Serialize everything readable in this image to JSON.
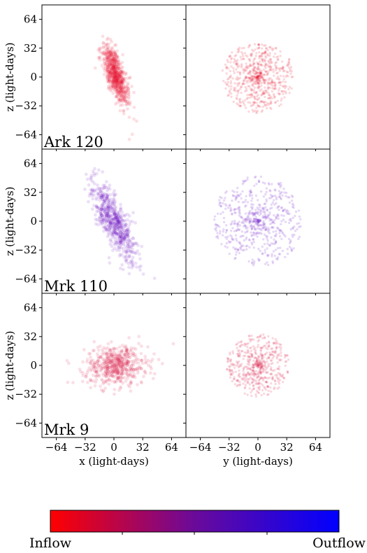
{
  "chart_data": {
    "type": "scatter",
    "panels_layout": "3 rows x 2 columns, shared axes",
    "axis_range": [
      -80,
      80
    ],
    "ticks": [
      -64,
      -32,
      0,
      32,
      64
    ],
    "tick_labels": [
      "−64",
      "−32",
      "0",
      "32",
      "64"
    ],
    "x_labels": [
      "x (light-days)",
      "y (light-days)"
    ],
    "y_label": "z (light-days)",
    "rows": [
      {
        "object": "Ark 120",
        "color": "#e8102e",
        "xz": {
          "center": [
            2,
            2
          ],
          "spread": [
            5,
            17
          ],
          "tilt": -0.32,
          "n": 700
        },
        "yz": {
          "center": [
            0,
            0
          ],
          "radius": 40,
          "n": 650
        }
      },
      {
        "object": "Mrk 110",
        "color": "#6a12c4",
        "xz": {
          "center": [
            0,
            0
          ],
          "spread": [
            8,
            22
          ],
          "tilt": -0.45,
          "n": 650
        },
        "yz": {
          "center": [
            0,
            0
          ],
          "radius": 50,
          "n": 600
        }
      },
      {
        "object": "Mrk 9",
        "color": "#d8103e",
        "xz": {
          "center": [
            2,
            0
          ],
          "spread": [
            17,
            11
          ],
          "tilt": 0.1,
          "n": 550
        },
        "yz": {
          "center": [
            0,
            0
          ],
          "radius": 35,
          "n": 520
        }
      }
    ],
    "colorbar": {
      "min_label": "Inflow",
      "max_label": "Outflow",
      "min_color": "#ff0000",
      "mid_color": "#6a0a9a",
      "max_color": "#0000ff"
    }
  }
}
